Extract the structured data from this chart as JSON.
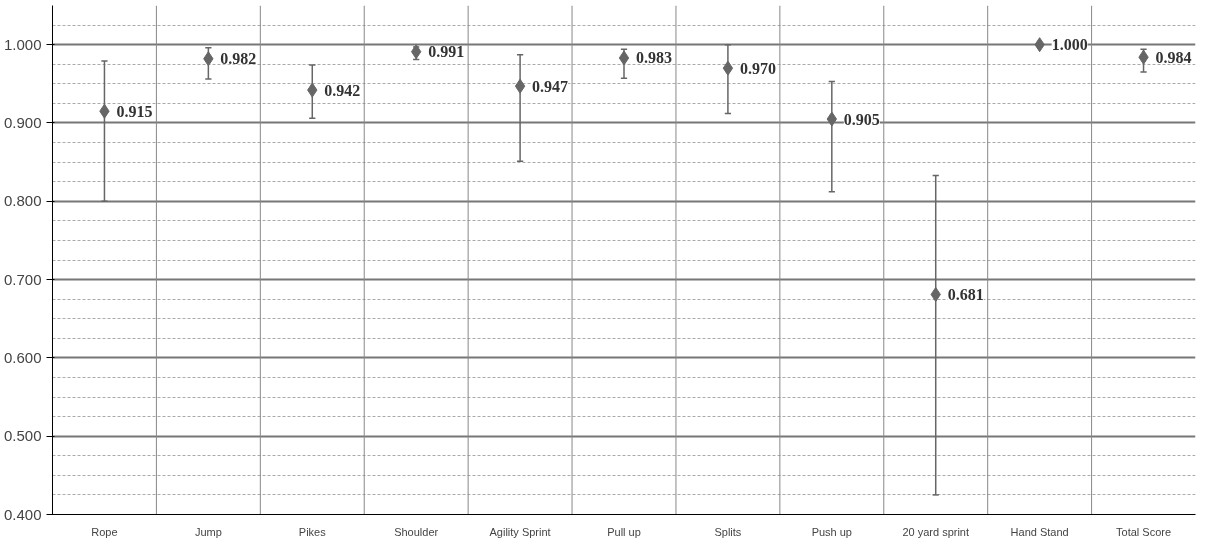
{
  "chart_data": {
    "type": "scatter",
    "categories": [
      "Rope",
      "Jump",
      "Pikes",
      "Shoulder",
      "Agility Sprint",
      "Pull up",
      "Splits",
      "Push up",
      "20 yard sprint",
      "Hand Stand",
      "Total Score"
    ],
    "values": [
      0.915,
      0.982,
      0.942,
      0.991,
      0.947,
      0.983,
      0.97,
      0.905,
      0.681,
      1.0,
      0.984
    ],
    "errors": [
      [
        0.8,
        0.979
      ],
      [
        0.956,
        0.996
      ],
      [
        0.906,
        0.974
      ],
      [
        0.981,
        0.997
      ],
      [
        0.851,
        0.987
      ],
      [
        0.957,
        0.994
      ],
      [
        0.912,
        1.0
      ],
      [
        0.812,
        0.953
      ],
      [
        0.425,
        0.833
      ],
      null,
      [
        0.965,
        0.994
      ]
    ],
    "value_labels": [
      "0.915",
      "0.982",
      "0.942",
      "0.991",
      "0.947",
      "0.983",
      "0.970",
      "0.905",
      "0.681",
      "1.000",
      "0.984"
    ],
    "color": "#666666",
    "marker": "diamond",
    "grid": true,
    "ylim": [
      0.4,
      1.05
    ],
    "yticks": [
      {
        "value": 0.4,
        "label": "0.400"
      },
      {
        "value": 0.5,
        "label": "0.500"
      },
      {
        "value": 0.6,
        "label": "0.600"
      },
      {
        "value": 0.7,
        "label": "0.700"
      },
      {
        "value": 0.8,
        "label": "0.800"
      },
      {
        "value": 0.9,
        "label": "0.900"
      },
      {
        "value": 1.0,
        "label": "1.000"
      }
    ]
  }
}
